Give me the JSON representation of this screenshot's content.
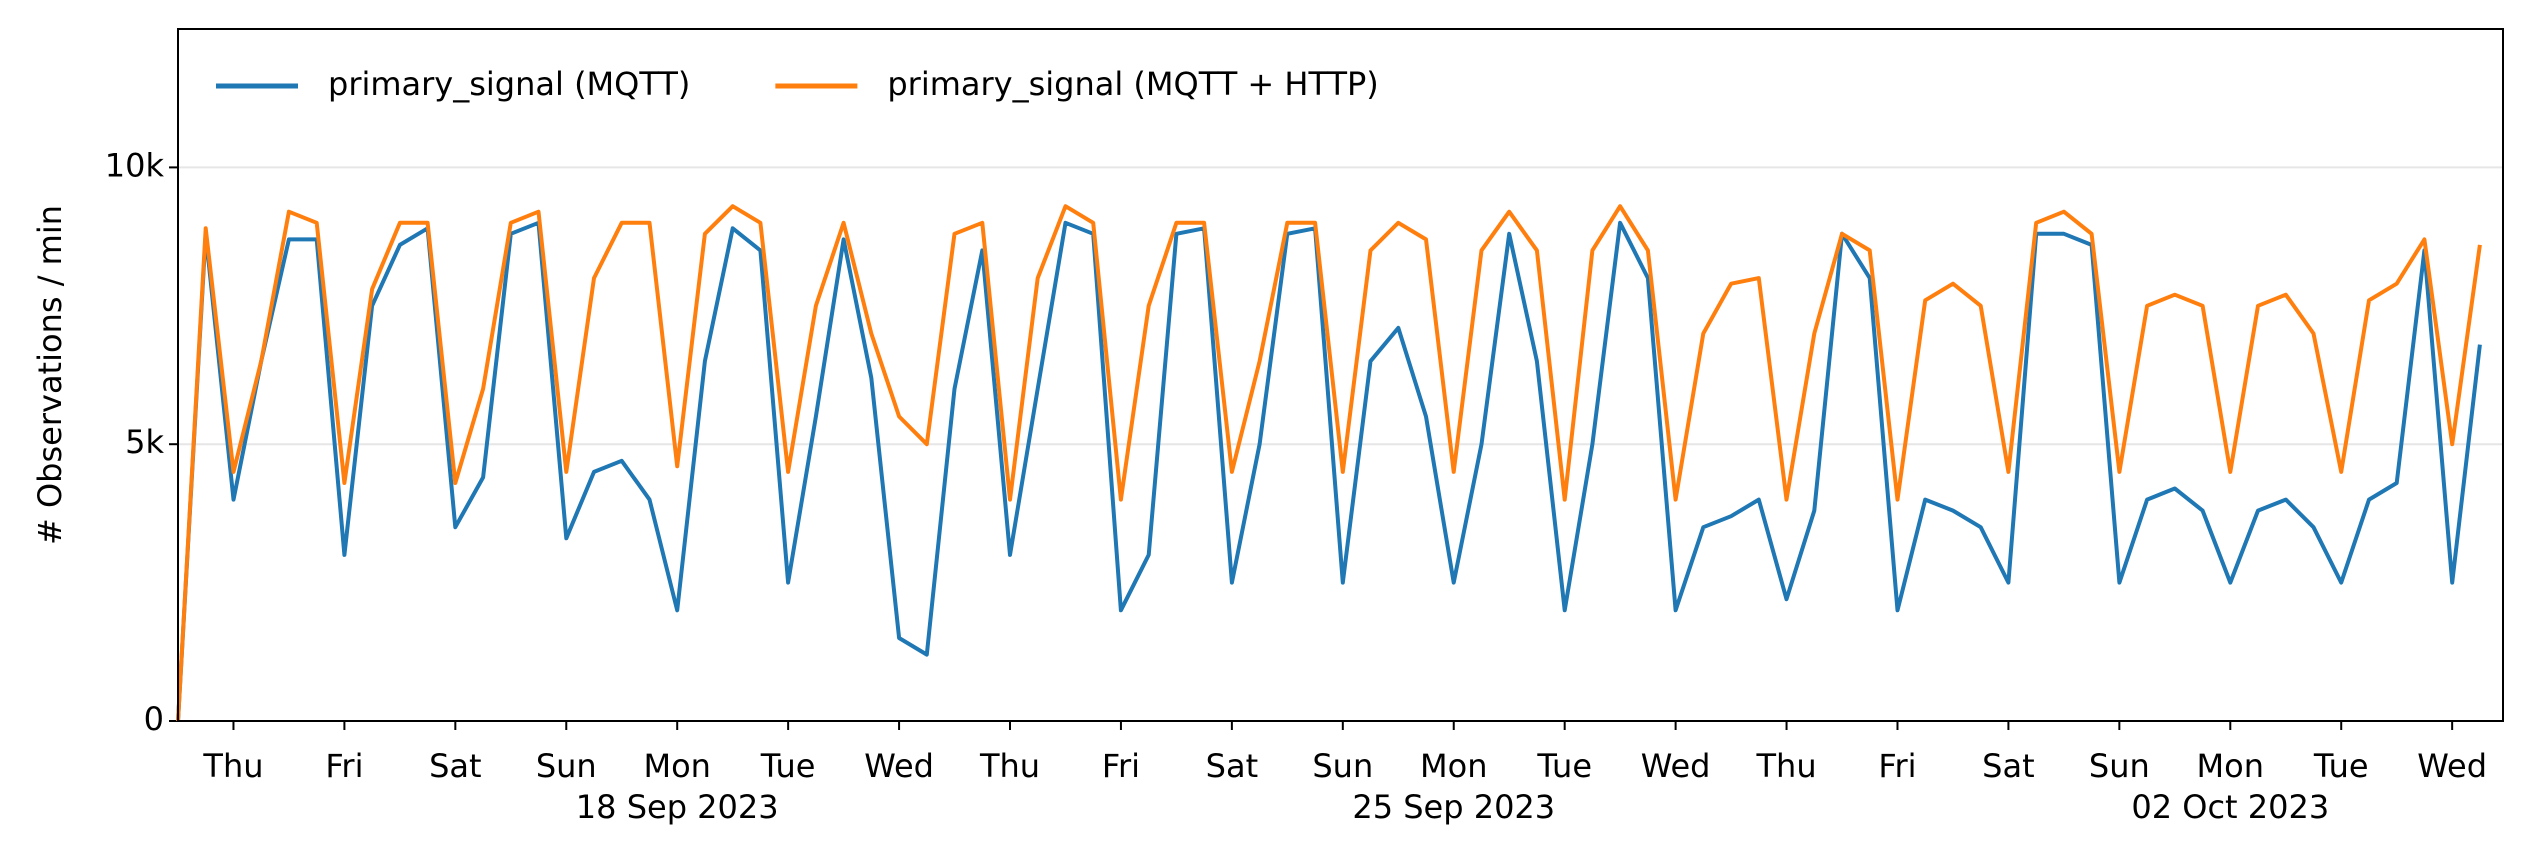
{
  "chart_data": {
    "type": "line",
    "ylabel": "# Observations / min",
    "x": [
      "2023-09-13 12:00",
      "2023-09-13 18:00",
      "2023-09-14 00:00",
      "2023-09-14 06:00",
      "2023-09-14 12:00",
      "2023-09-14 18:00",
      "2023-09-15 00:00",
      "2023-09-15 06:00",
      "2023-09-15 12:00",
      "2023-09-15 18:00",
      "2023-09-16 00:00",
      "2023-09-16 06:00",
      "2023-09-16 12:00",
      "2023-09-16 18:00",
      "2023-09-17 00:00",
      "2023-09-17 06:00",
      "2023-09-17 12:00",
      "2023-09-17 18:00",
      "2023-09-18 00:00",
      "2023-09-18 06:00",
      "2023-09-18 12:00",
      "2023-09-18 18:00",
      "2023-09-19 00:00",
      "2023-09-19 06:00",
      "2023-09-19 12:00",
      "2023-09-19 18:00",
      "2023-09-20 00:00",
      "2023-09-20 06:00",
      "2023-09-20 12:00",
      "2023-09-20 18:00",
      "2023-09-21 00:00",
      "2023-09-21 06:00",
      "2023-09-21 12:00",
      "2023-09-21 18:00",
      "2023-09-22 00:00",
      "2023-09-22 06:00",
      "2023-09-22 12:00",
      "2023-09-22 18:00",
      "2023-09-23 00:00",
      "2023-09-23 06:00",
      "2023-09-23 12:00",
      "2023-09-23 18:00",
      "2023-09-24 00:00",
      "2023-09-24 06:00",
      "2023-09-24 12:00",
      "2023-09-24 18:00",
      "2023-09-25 00:00",
      "2023-09-25 06:00",
      "2023-09-25 12:00",
      "2023-09-25 18:00",
      "2023-09-26 00:00",
      "2023-09-26 06:00",
      "2023-09-26 12:00",
      "2023-09-26 18:00",
      "2023-09-27 00:00",
      "2023-09-27 06:00",
      "2023-09-27 12:00",
      "2023-09-27 18:00",
      "2023-09-28 00:00",
      "2023-09-28 06:00",
      "2023-09-28 12:00",
      "2023-09-28 18:00",
      "2023-09-29 00:00",
      "2023-09-29 06:00",
      "2023-09-29 12:00",
      "2023-09-29 18:00",
      "2023-09-30 00:00",
      "2023-09-30 06:00",
      "2023-09-30 12:00",
      "2023-09-30 18:00",
      "2023-10-01 00:00",
      "2023-10-01 06:00",
      "2023-10-01 12:00",
      "2023-10-01 18:00",
      "2023-10-02 00:00",
      "2023-10-02 06:00",
      "2023-10-02 12:00",
      "2023-10-02 18:00",
      "2023-10-03 00:00",
      "2023-10-03 06:00",
      "2023-10-03 12:00",
      "2023-10-03 18:00",
      "2023-10-04 00:00",
      "2023-10-04 06:00"
    ],
    "series": [
      {
        "name": "primary_signal (MQTT)",
        "color": "#1f77b4",
        "values": [
          0,
          8800,
          4000,
          6500,
          8700,
          8700,
          3000,
          7500,
          8600,
          8900,
          3500,
          4400,
          8800,
          9000,
          3300,
          4500,
          4700,
          4000,
          2000,
          6500,
          8900,
          8500,
          2500,
          5500,
          8700,
          6200,
          1500,
          1200,
          6000,
          8500,
          3000,
          6000,
          9000,
          8800,
          2000,
          3000,
          8800,
          8900,
          2500,
          5000,
          8800,
          8900,
          2500,
          6500,
          7100,
          5500,
          2500,
          5000,
          8800,
          6500,
          2000,
          5000,
          9000,
          8000,
          2000,
          3500,
          3700,
          4000,
          2200,
          3800,
          8800,
          8000,
          2000,
          4000,
          3800,
          3500,
          2500,
          8800,
          8800,
          8600,
          2500,
          4000,
          4200,
          3800,
          2500,
          3800,
          4000,
          3500,
          2500,
          4000,
          4300,
          8500,
          2500,
          6800
        ]
      },
      {
        "name": "primary_signal (MQTT + HTTP)",
        "color": "#ff7f0e",
        "values": [
          0,
          8900,
          4500,
          6500,
          9200,
          9000,
          4300,
          7800,
          9000,
          9000,
          4300,
          6000,
          9000,
          9200,
          4500,
          8000,
          9000,
          9000,
          4600,
          8800,
          9300,
          9000,
          4500,
          7500,
          9000,
          7000,
          5500,
          5000,
          8800,
          9000,
          4000,
          8000,
          9300,
          9000,
          4000,
          7500,
          9000,
          9000,
          4500,
          6500,
          9000,
          9000,
          4500,
          8500,
          9000,
          8700,
          4500,
          8500,
          9200,
          8500,
          4000,
          8500,
          9300,
          8500,
          4000,
          7000,
          7900,
          8000,
          4000,
          7000,
          8800,
          8500,
          4000,
          7600,
          7900,
          7500,
          4500,
          9000,
          9200,
          8800,
          4500,
          7500,
          7700,
          7500,
          4500,
          7500,
          7700,
          7000,
          4500,
          7600,
          7900,
          8700,
          5000,
          8600
        ]
      }
    ],
    "xlim": [
      "2023-09-13 12:00",
      "2023-10-04 11:00"
    ],
    "xticks": [
      {
        "value": "2023-09-14 00:00",
        "label": "Thu"
      },
      {
        "value": "2023-09-15 00:00",
        "label": "Fri"
      },
      {
        "value": "2023-09-16 00:00",
        "label": "Sat"
      },
      {
        "value": "2023-09-17 00:00",
        "label": "Sun"
      },
      {
        "value": "2023-09-18 00:00",
        "label": "Mon"
      },
      {
        "value": "2023-09-19 00:00",
        "label": "Tue"
      },
      {
        "value": "2023-09-20 00:00",
        "label": "Wed"
      },
      {
        "value": "2023-09-21 00:00",
        "label": "Thu"
      },
      {
        "value": "2023-09-22 00:00",
        "label": "Fri"
      },
      {
        "value": "2023-09-23 00:00",
        "label": "Sat"
      },
      {
        "value": "2023-09-24 00:00",
        "label": "Sun"
      },
      {
        "value": "2023-09-25 00:00",
        "label": "Mon"
      },
      {
        "value": "2023-09-26 00:00",
        "label": "Tue"
      },
      {
        "value": "2023-09-27 00:00",
        "label": "Wed"
      },
      {
        "value": "2023-09-28 00:00",
        "label": "Thu"
      },
      {
        "value": "2023-09-29 00:00",
        "label": "Fri"
      },
      {
        "value": "2023-09-30 00:00",
        "label": "Sat"
      },
      {
        "value": "2023-10-01 00:00",
        "label": "Sun"
      },
      {
        "value": "2023-10-02 00:00",
        "label": "Mon"
      },
      {
        "value": "2023-10-03 00:00",
        "label": "Tue"
      },
      {
        "value": "2023-10-04 00:00",
        "label": "Wed"
      }
    ],
    "xdate_labels": [
      {
        "value": "2023-09-18 00:00",
        "label": "18 Sep 2023"
      },
      {
        "value": "2023-09-25 00:00",
        "label": "25 Sep 2023"
      },
      {
        "value": "2023-10-02 00:00",
        "label": "02 Oct 2023"
      }
    ],
    "ylim": [
      0,
      12500
    ],
    "yticks": [
      0,
      {
        "value": 5000,
        "label": "5k"
      },
      {
        "value": 10000,
        "label": "10k"
      }
    ],
    "grid": true,
    "legend": "upper left"
  }
}
